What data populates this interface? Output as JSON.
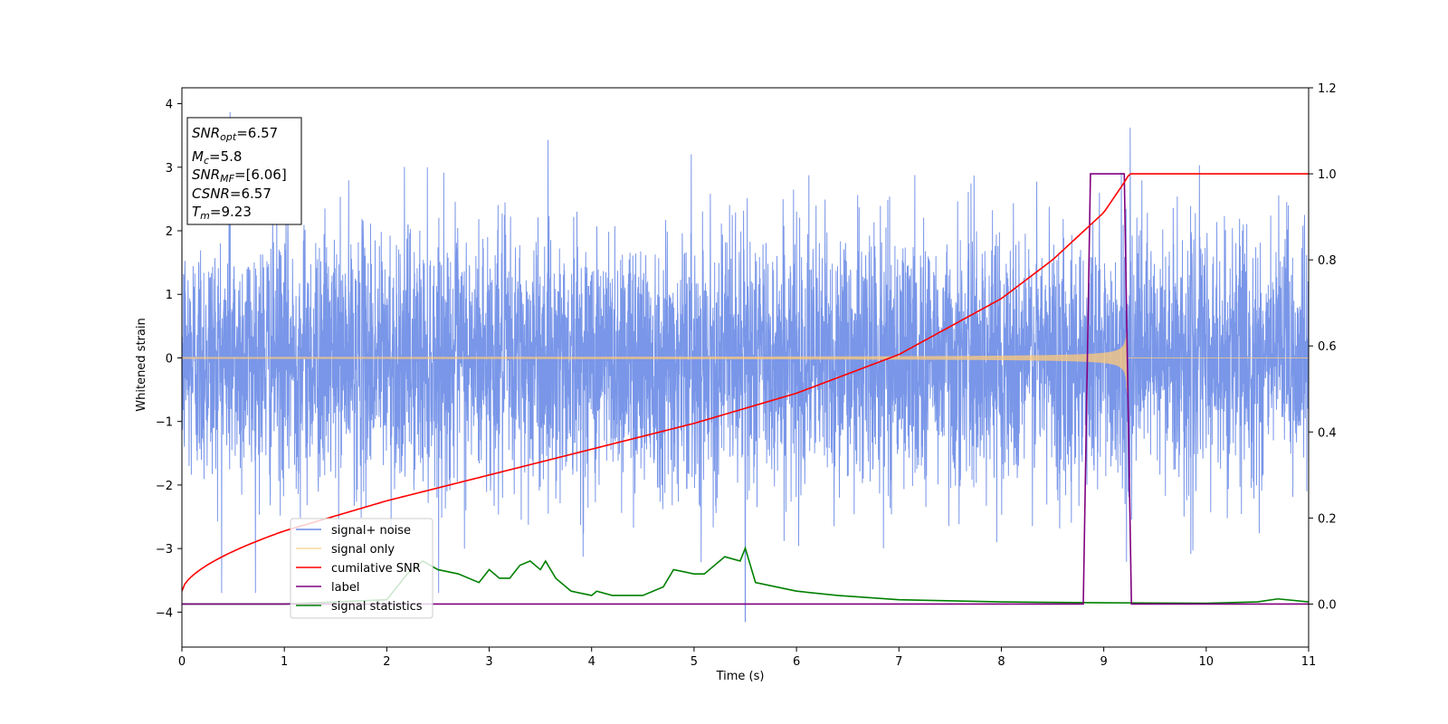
{
  "chart_data": {
    "type": "line",
    "xlabel": "Time (s)",
    "ylabel_left": "Whitened strain",
    "xlim": [
      0,
      11
    ],
    "ylim_left": [
      -4.55,
      4.25
    ],
    "ylim_right": [
      -0.1,
      1.2
    ],
    "x_ticks": [
      "0",
      "1",
      "2",
      "3",
      "4",
      "5",
      "6",
      "7",
      "8",
      "9",
      "10",
      "11"
    ],
    "y_left_ticks": [
      "4",
      "3",
      "2",
      "1",
      "0",
      "−1",
      "−2",
      "−3",
      "−4"
    ],
    "y_right_ticks": [
      "1.2",
      "1.0",
      "0.8",
      "0.6",
      "0.4",
      "0.2",
      "0.0"
    ],
    "grid": false,
    "legend_position": "lower-left",
    "info_box": {
      "snr_opt": "=6.57",
      "mc": "=5.8",
      "snr_mf": "=[6.06]",
      "csnr": "=6.57",
      "tm": "=9.23"
    },
    "series": [
      {
        "name": "signal+ noise",
        "axis": "left",
        "color": "#6a8be6",
        "kind": "noise",
        "envelope_sigma": 1.0,
        "visible_extremes": {
          "max": 3.87,
          "min": -4.15
        }
      },
      {
        "name": "signal only",
        "axis": "left",
        "color": "#ffc97a",
        "kind": "chirp",
        "merger_time": 9.23,
        "peak_amplitude": 0.55
      },
      {
        "name": "cumilative SNR",
        "axis": "right",
        "color": "#ff0000",
        "x": [
          0,
          1,
          2,
          3,
          4,
          5,
          6,
          7,
          8,
          8.5,
          9,
          9.2,
          9.25,
          11
        ],
        "y": [
          0.03,
          0.17,
          0.24,
          0.3,
          0.36,
          0.42,
          0.49,
          0.58,
          0.71,
          0.8,
          0.91,
          0.98,
          1.0,
          1.0
        ]
      },
      {
        "name": "label",
        "axis": "right",
        "color": "#800080",
        "x": [
          0,
          8.8,
          8.87,
          9.2,
          9.27,
          11
        ],
        "y": [
          0.0,
          0.0,
          1.0,
          1.0,
          0.0,
          0.0
        ]
      },
      {
        "name": "signal statistics",
        "axis": "right",
        "color": "#008000",
        "x": [
          0,
          1,
          2,
          2.2,
          2.35,
          2.5,
          2.7,
          2.9,
          3.0,
          3.1,
          3.2,
          3.3,
          3.4,
          3.5,
          3.55,
          3.65,
          3.8,
          4.0,
          4.05,
          4.2,
          4.5,
          4.7,
          4.8,
          5.0,
          5.1,
          5.3,
          5.45,
          5.5,
          5.55,
          5.6,
          5.8,
          6.0,
          6.4,
          7.0,
          8.0,
          9.0,
          10.0,
          10.5,
          10.7,
          11
        ],
        "y": [
          0.0,
          0.0,
          0.01,
          0.07,
          0.1,
          0.08,
          0.07,
          0.05,
          0.08,
          0.06,
          0.06,
          0.09,
          0.1,
          0.08,
          0.1,
          0.06,
          0.03,
          0.02,
          0.03,
          0.02,
          0.02,
          0.04,
          0.08,
          0.07,
          0.07,
          0.11,
          0.1,
          0.13,
          0.09,
          0.05,
          0.04,
          0.03,
          0.02,
          0.01,
          0.005,
          0.003,
          0.002,
          0.005,
          0.012,
          0.005
        ]
      }
    ]
  }
}
